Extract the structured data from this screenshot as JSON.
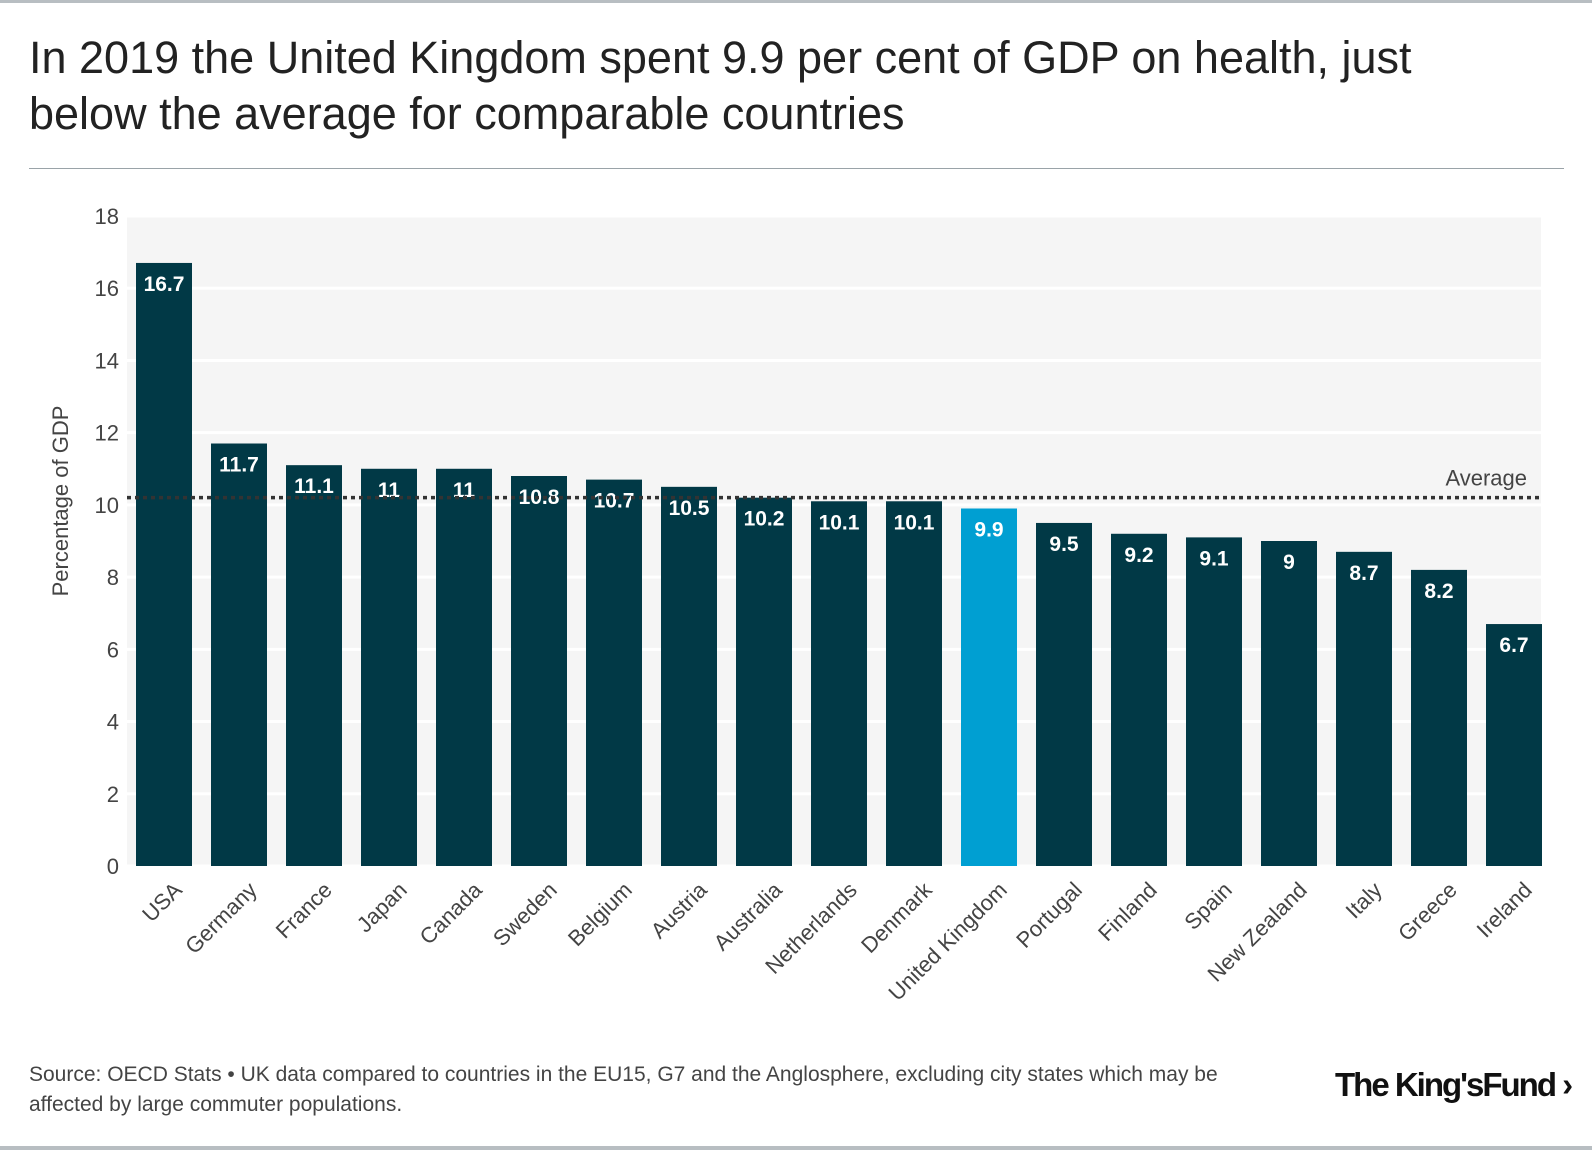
{
  "title": "In 2019 the United Kingdom spent 9.9 per cent of GDP on health, just below the average for comparable countries",
  "footer": "Source: OECD Stats • UK data compared to countries in the EU15, G7 and the Anglosphere, excluding city states which may be affected by large commuter populations.",
  "logo": "The King's Fund",
  "chart_data": {
    "type": "bar",
    "ylabel": "Percentage of GDP",
    "ylim": [
      0,
      18
    ],
    "yticks": [
      0,
      2,
      4,
      6,
      8,
      10,
      12,
      14,
      16,
      18
    ],
    "grid": true,
    "categories": [
      "USA",
      "Germany",
      "France",
      "Japan",
      "Canada",
      "Sweden",
      "Belgium",
      "Austria",
      "Australia",
      "Netherlands",
      "Denmark",
      "United Kingdom",
      "Portugal",
      "Finland",
      "Spain",
      "New Zealand",
      "Italy",
      "Greece",
      "Ireland"
    ],
    "values": [
      16.7,
      11.7,
      11.1,
      11,
      11,
      10.8,
      10.7,
      10.5,
      10.2,
      10.1,
      10.1,
      9.9,
      9.5,
      9.2,
      9.1,
      9,
      8.7,
      8.2,
      6.7
    ],
    "highlight": "United Kingdom",
    "reference_line": {
      "label": "Average",
      "value": 10.2
    },
    "colors": {
      "bar": "#013946",
      "highlight": "#009fd2",
      "background": "#f5f5f5",
      "average_line": "#333333"
    }
  }
}
